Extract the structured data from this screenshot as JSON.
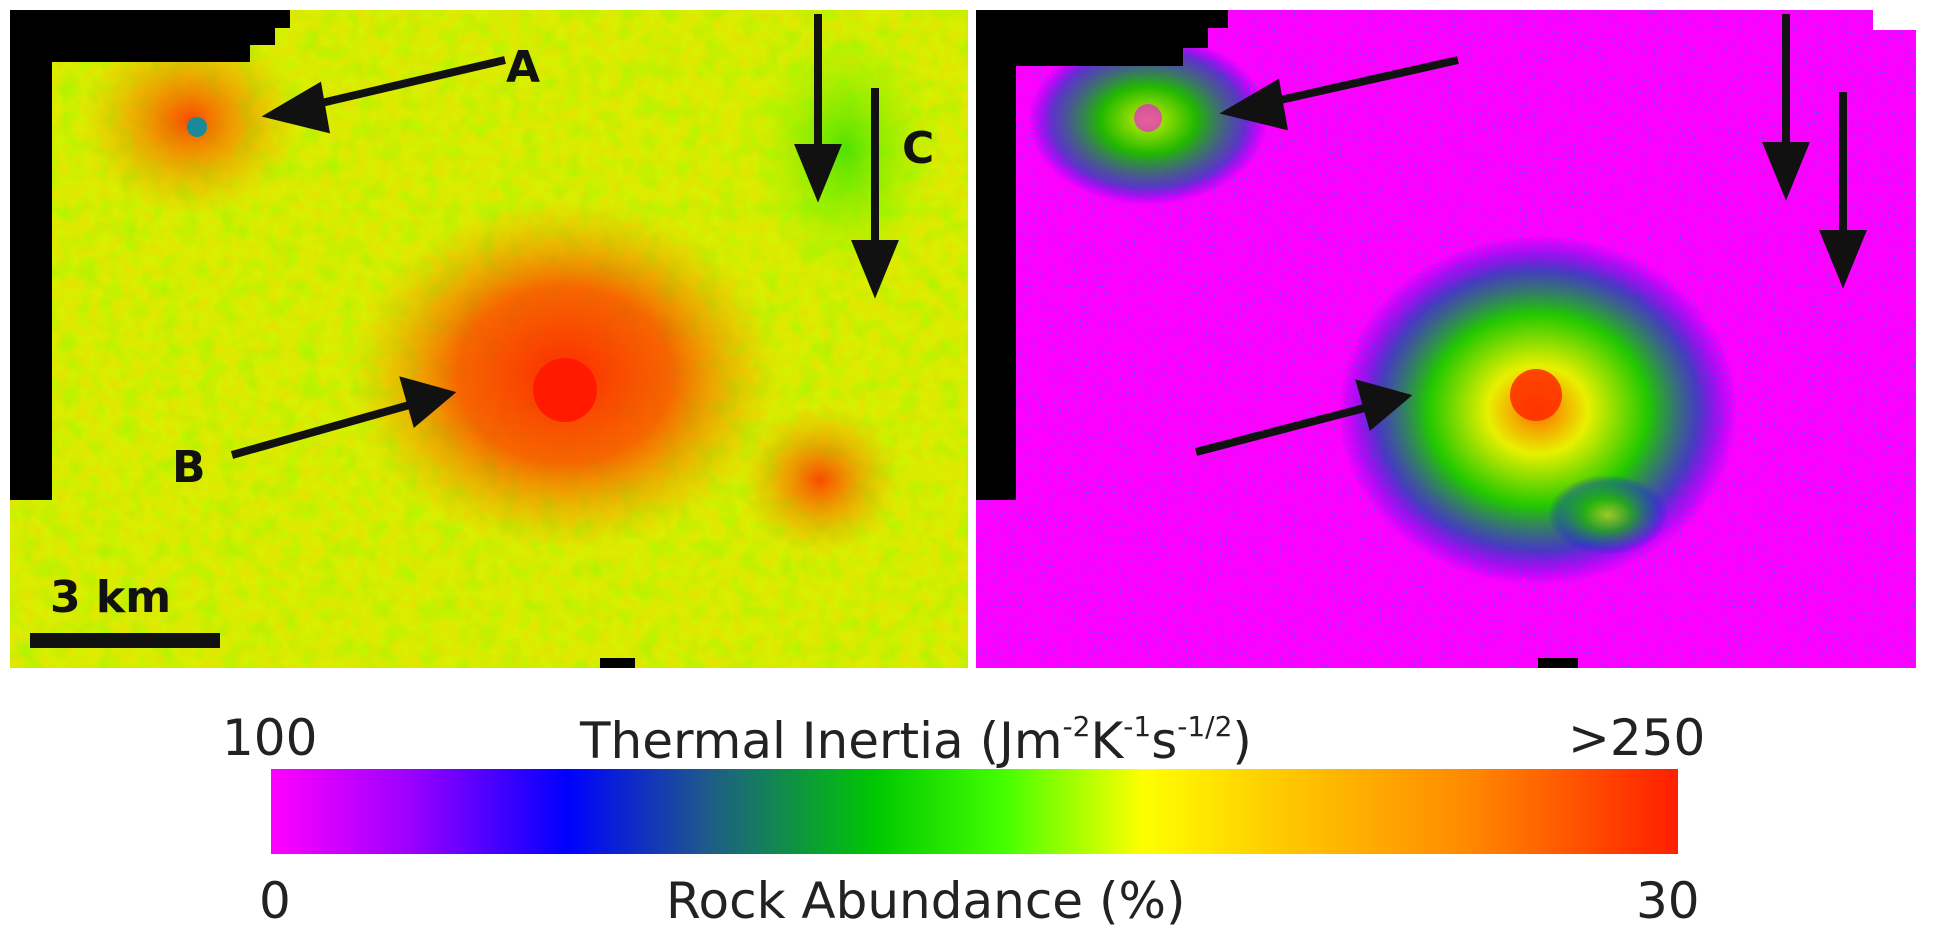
{
  "panels": [
    {
      "id": "thermal-inertia-map",
      "labels": [
        "A",
        "B",
        "C"
      ]
    },
    {
      "id": "rock-abundance-map",
      "labels": []
    }
  ],
  "scale_bar": {
    "label": "3 km"
  },
  "colorbar": {
    "thermal_inertia": {
      "min_label": "100",
      "title_main": "Thermal Inertia (Jm",
      "title_exp1": "-2",
      "title_k": "K",
      "title_exp2": "-1",
      "title_s": "s",
      "title_exp3": "-1/2",
      "title_close": ")",
      "max_label": ">250"
    },
    "rock_abundance": {
      "min_label": "0",
      "title": "Rock Abundance (%)",
      "max_label": "30"
    },
    "colors": [
      "#ff00ff",
      "#0000ff",
      "#00c800",
      "#ffff00",
      "#ff1e00"
    ]
  }
}
